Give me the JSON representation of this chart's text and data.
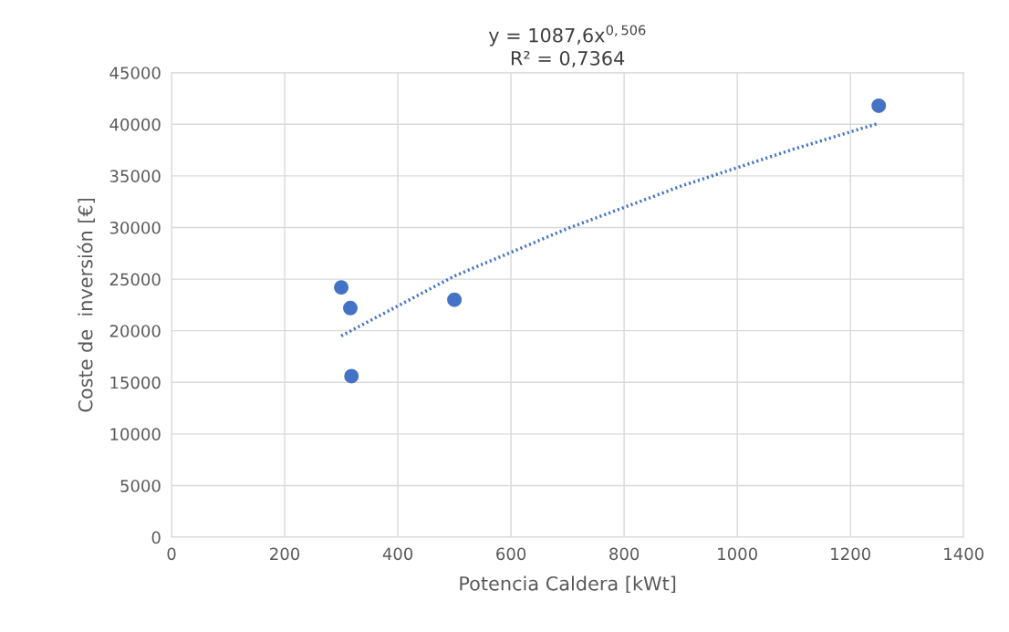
{
  "chart_data": {
    "type": "scatter",
    "title": "y = 1087,6x$^{0,506}$\nR² = 0,7364",
    "xlabel": "Potencia Caldera [kWt]",
    "ylabel": "Coste de  inversión [€]",
    "series": [
      {
        "color": "#4472c4",
        "marker": "circle",
        "x": [
          300,
          316,
          318,
          500,
          1250
        ],
        "values": [
          24200,
          22200,
          15600,
          23000,
          41800
        ]
      },
      {
        "type": "line",
        "color": "#4472c4",
        "line_style": "dotted",
        "marker": "none",
        "x": [
          300,
          500,
          700,
          900,
          1100,
          1250
        ],
        "values": [
          19500,
          25300,
          29900,
          34000,
          37600,
          40100
        ]
      }
    ],
    "xlim": [
      0,
      1400
    ],
    "xticks": [
      0,
      200,
      400,
      600,
      800,
      1000,
      1200,
      1400
    ],
    "ylim": [
      0,
      45000
    ],
    "yticks": [
      0,
      5000,
      10000,
      15000,
      20000,
      25000,
      30000,
      35000,
      40000,
      45000
    ],
    "grid": true
  }
}
